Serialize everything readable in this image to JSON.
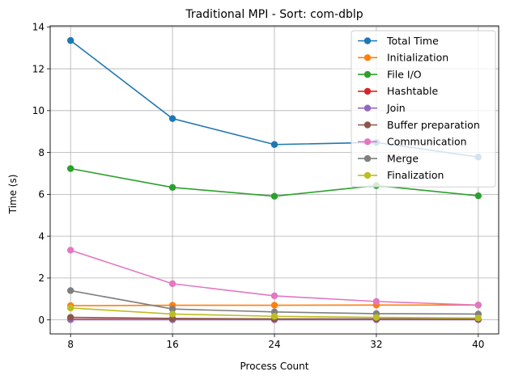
{
  "chart_data": {
    "type": "line",
    "title": "Traditional MPI - Sort: com-dblp",
    "xlabel": "Process Count",
    "ylabel": "Time (s)",
    "x": [
      8,
      16,
      24,
      32,
      40
    ],
    "xticks": [
      "8",
      "16",
      "24",
      "32",
      "40"
    ],
    "yticks": [
      "0",
      "2",
      "4",
      "6",
      "8",
      "10",
      "12",
      "14"
    ],
    "xlim": [
      6.4,
      41.6
    ],
    "ylim": [
      -0.67,
      14.05
    ],
    "grid": true,
    "legend_position": "upper-right",
    "series": [
      {
        "name": "Total Time",
        "color": "#1f77b4",
        "values": [
          13.35,
          9.62,
          8.38,
          8.48,
          7.78
        ]
      },
      {
        "name": "Initialization",
        "color": "#ff7f0e",
        "values": [
          0.68,
          0.7,
          0.7,
          0.71,
          0.71
        ]
      },
      {
        "name": "File I/O",
        "color": "#2ca02c",
        "values": [
          7.23,
          6.33,
          5.91,
          6.42,
          5.93
        ]
      },
      {
        "name": "Hashtable",
        "color": "#d62728",
        "values": [
          0.03,
          0.02,
          0.02,
          0.02,
          0.02
        ]
      },
      {
        "name": "Join",
        "color": "#9467bd",
        "values": [
          0.01,
          0.01,
          0.01,
          0.01,
          0.01
        ]
      },
      {
        "name": "Buffer preparation",
        "color": "#8c564b",
        "values": [
          0.12,
          0.07,
          0.05,
          0.05,
          0.04
        ]
      },
      {
        "name": "Communication",
        "color": "#e377c2",
        "values": [
          3.33,
          1.73,
          1.15,
          0.88,
          0.71
        ]
      },
      {
        "name": "Merge",
        "color": "#7f7f7f",
        "values": [
          1.4,
          0.52,
          0.38,
          0.3,
          0.28
        ]
      },
      {
        "name": "Finalization",
        "color": "#bcbd22",
        "values": [
          0.57,
          0.28,
          0.17,
          0.12,
          0.09
        ]
      }
    ]
  }
}
